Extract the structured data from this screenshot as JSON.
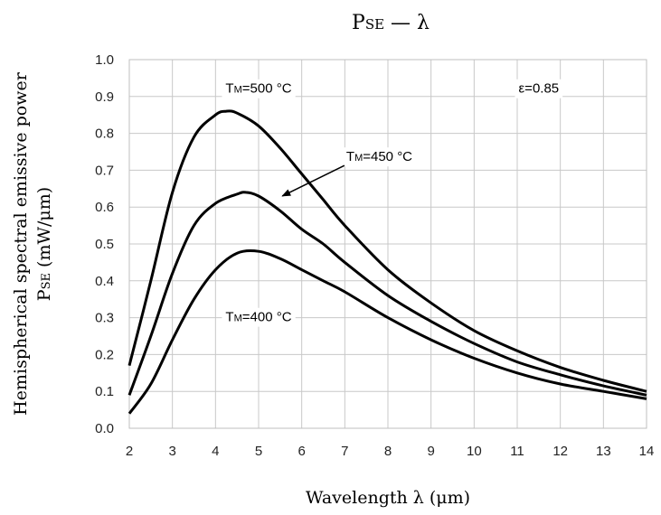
{
  "chart_data": {
    "type": "line",
    "title": {
      "main": "P",
      "sub": "SE",
      "rest": " — λ"
    },
    "xlabel": "Wavelength λ (μm)",
    "ylabel_line1": "Hemispherical spectral emissive power",
    "ylabel_line2": {
      "main": "P",
      "sub": "SE",
      "rest": " (mW/μm)"
    },
    "xlim": [
      2,
      14
    ],
    "ylim": [
      0,
      1.0
    ],
    "xticks": [
      "2",
      "3",
      "4",
      "5",
      "6",
      "7",
      "8",
      "9",
      "10",
      "11",
      "12",
      "13",
      "14"
    ],
    "yticks": [
      "0.0",
      "0.1",
      "0.2",
      "0.3",
      "0.4",
      "0.5",
      "0.6",
      "0.7",
      "0.8",
      "0.9",
      "1.0"
    ],
    "grid": true,
    "series": [
      {
        "name": {
          "main": "T",
          "sub": "M",
          "rest": "=500 °C"
        },
        "x": [
          2.0,
          2.5,
          3.0,
          3.5,
          4.0,
          4.25,
          4.5,
          5.0,
          5.5,
          6.0,
          6.5,
          7.0,
          8.0,
          9.0,
          10.0,
          11.0,
          12.0,
          13.0,
          14.0
        ],
        "y": [
          0.17,
          0.4,
          0.64,
          0.79,
          0.85,
          0.86,
          0.855,
          0.82,
          0.76,
          0.69,
          0.62,
          0.55,
          0.43,
          0.34,
          0.265,
          0.21,
          0.165,
          0.13,
          0.1
        ]
      },
      {
        "name": {
          "main": "T",
          "sub": "M",
          "rest": "=450 °C"
        },
        "x": [
          2.0,
          2.5,
          3.0,
          3.5,
          4.0,
          4.5,
          4.7,
          5.0,
          5.5,
          6.0,
          6.5,
          7.0,
          8.0,
          9.0,
          10.0,
          11.0,
          12.0,
          13.0,
          14.0
        ],
        "y": [
          0.09,
          0.25,
          0.42,
          0.55,
          0.61,
          0.635,
          0.64,
          0.63,
          0.59,
          0.54,
          0.5,
          0.45,
          0.36,
          0.29,
          0.23,
          0.18,
          0.145,
          0.115,
          0.09
        ]
      },
      {
        "name": {
          "main": "T",
          "sub": "M",
          "rest": "=400 °C"
        },
        "x": [
          2.0,
          2.5,
          3.0,
          3.5,
          4.0,
          4.5,
          5.0,
          5.5,
          6.0,
          6.5,
          7.0,
          8.0,
          9.0,
          10.0,
          11.0,
          12.0,
          13.0,
          14.0
        ],
        "y": [
          0.04,
          0.12,
          0.24,
          0.35,
          0.43,
          0.475,
          0.48,
          0.46,
          0.43,
          0.4,
          0.37,
          0.3,
          0.24,
          0.19,
          0.15,
          0.12,
          0.1,
          0.08
        ]
      }
    ],
    "annotations": [
      {
        "main": "T",
        "sub": "M",
        "rest": "=500 °C",
        "x": 5.0,
        "y": 0.91,
        "anchor": "middle"
      },
      {
        "main": "T",
        "sub": "M",
        "rest": "=450 °C",
        "x": 7.8,
        "y": 0.725,
        "anchor": "middle",
        "arrow_to": [
          5.55,
          0.63
        ]
      },
      {
        "main": "T",
        "sub": "M",
        "rest": "=400 °C",
        "x": 5.0,
        "y": 0.29,
        "anchor": "middle"
      },
      {
        "text": "ε=0.85",
        "x": 11.5,
        "y": 0.91,
        "anchor": "middle"
      }
    ]
  }
}
